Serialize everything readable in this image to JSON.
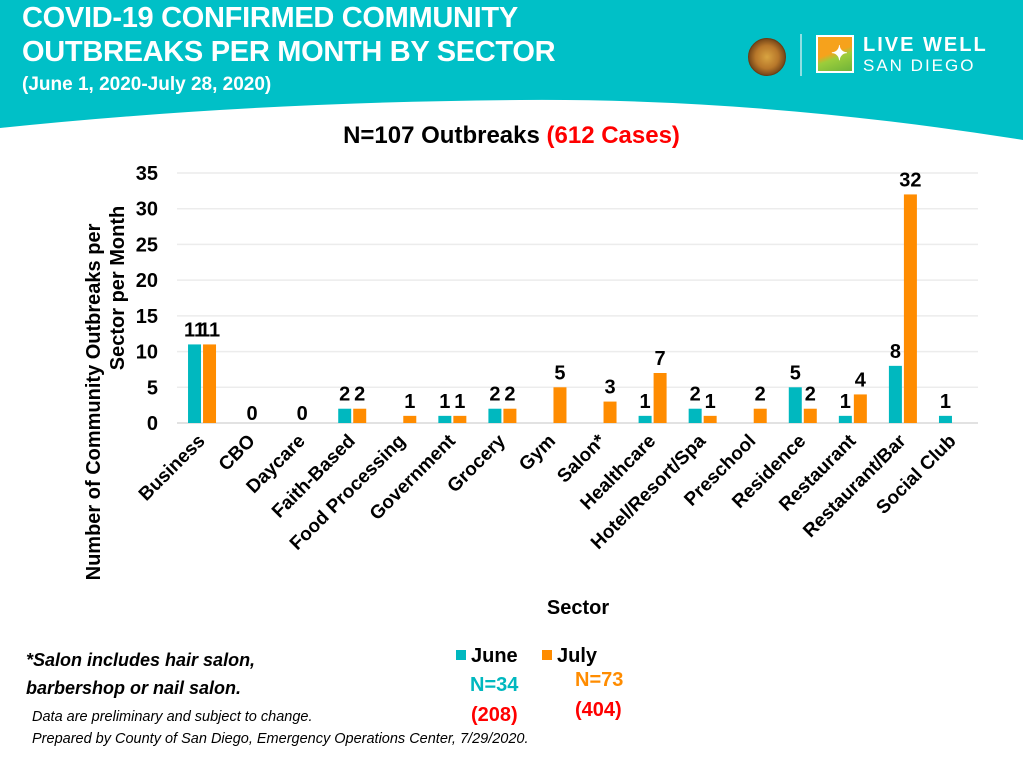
{
  "header": {
    "title_line_1": "COVID-19 CONFIRMED COMMUNITY",
    "title_line_2": "OUTBREAKS PER MONTH BY SECTOR",
    "subtitle": "(June 1, 2020-July 28, 2020)",
    "logo_text_1": "LIVE WELL",
    "logo_text_2": "SAN DIEGO",
    "brand_color": "#00c0c7"
  },
  "chart_title": {
    "main": "N=107 Outbreaks ",
    "cases": "(612 Cases)"
  },
  "chart_data": {
    "type": "bar",
    "title": "N=107 Outbreaks (612 Cases)",
    "xlabel": "Sector",
    "ylabel": "Number of Community Outbreaks per Sector per Month",
    "ylabel_lines": [
      "Number of Community Outbreaks per",
      "Sector per Month"
    ],
    "ylim": [
      0,
      35
    ],
    "yticks": [
      0,
      5,
      10,
      15,
      20,
      25,
      30,
      35
    ],
    "grid": true,
    "legend_position": "bottom",
    "categories": [
      "Business",
      "CBO",
      "Daycare",
      "Faith-Based",
      "Food Processing",
      "Government",
      "Grocery",
      "Gym",
      "Salon*",
      "Healthcare",
      "Hotel/Resort/Spa",
      "Preschool",
      "Residence",
      "Restaurant",
      "Restaurant/Bar",
      "Social Club"
    ],
    "series": [
      {
        "name": "June",
        "color": "#00b8bf",
        "values": [
          11,
          0,
          0,
          2,
          null,
          1,
          2,
          null,
          null,
          1,
          2,
          null,
          5,
          1,
          8,
          1
        ]
      },
      {
        "name": "July",
        "color": "#ff8c00",
        "values": [
          11,
          null,
          null,
          2,
          1,
          1,
          2,
          5,
          3,
          7,
          1,
          2,
          2,
          4,
          32,
          null
        ]
      }
    ]
  },
  "legend": {
    "june": {
      "label": "June",
      "n": "N=34",
      "cases": "(208)",
      "color": "#00b8bf"
    },
    "july": {
      "label": "July",
      "n": "N=73",
      "cases": "(404)",
      "color": "#ff8c00"
    }
  },
  "footnote": {
    "line_1": "*Salon includes hair salon,",
    "line_2": "barbershop or nail salon."
  },
  "disclaimer": {
    "line_1": "Data are preliminary and subject to change.",
    "line_2": "Prepared by County of San Diego, Emergency Operations Center, 7/29/2020."
  }
}
